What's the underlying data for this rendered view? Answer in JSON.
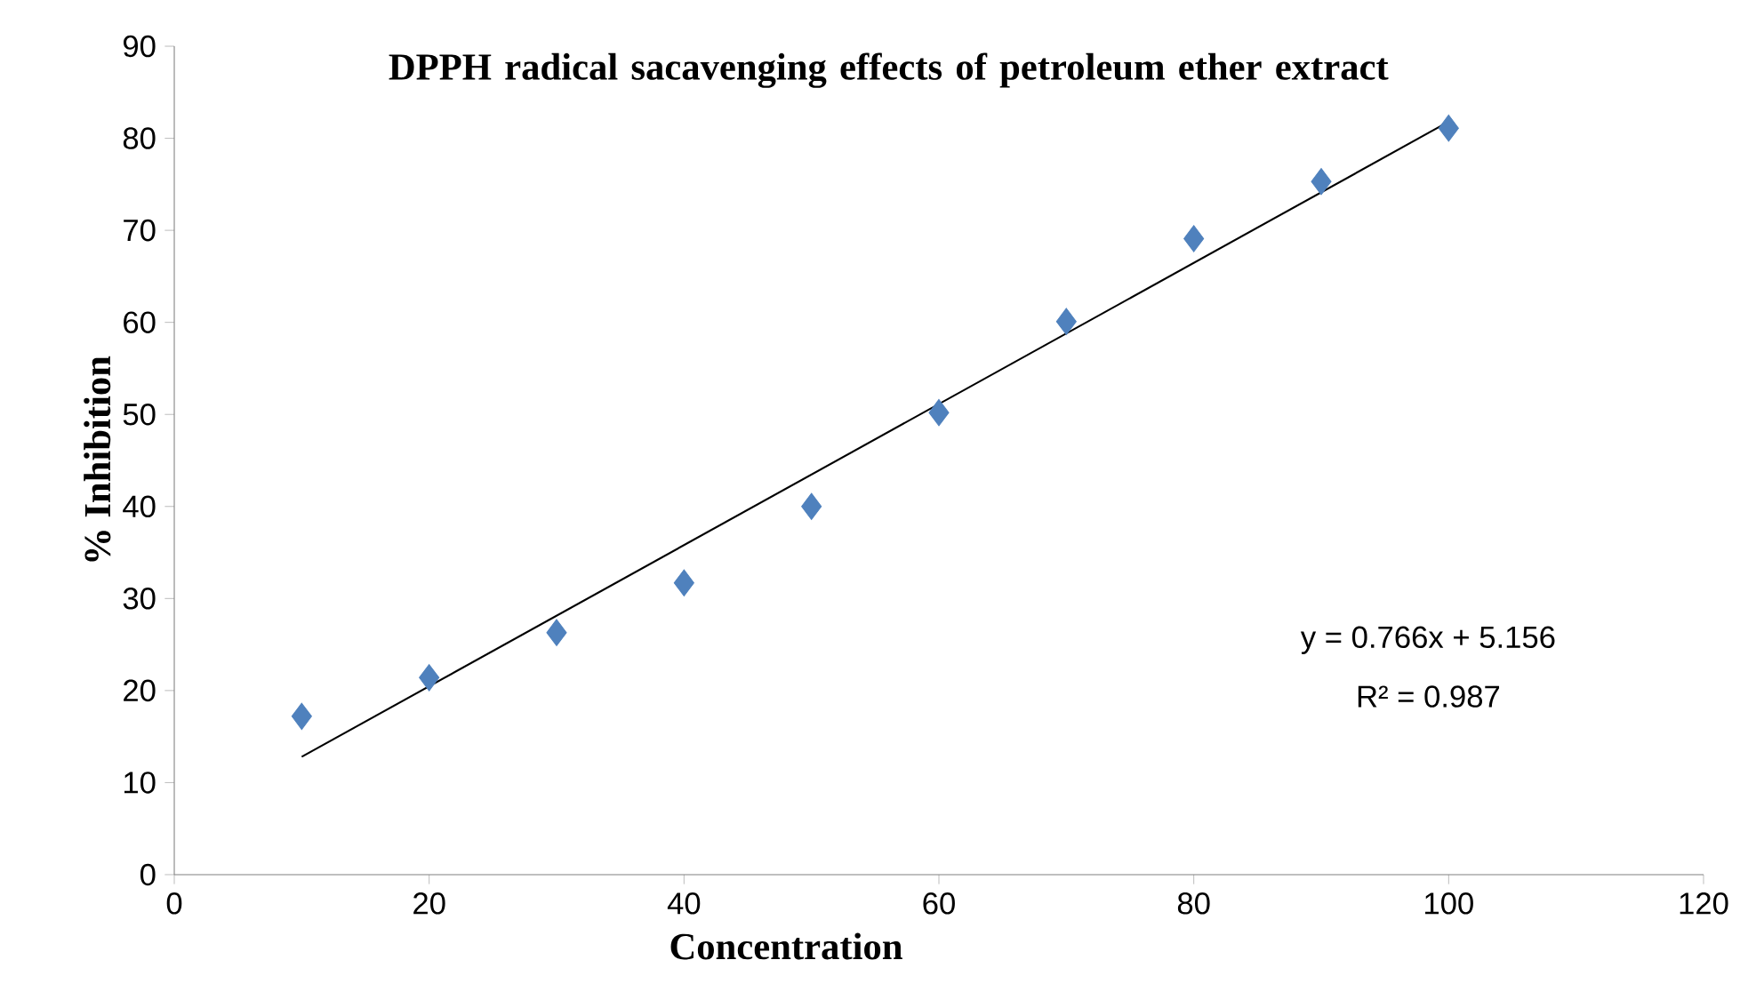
{
  "chart_data": {
    "type": "scatter",
    "title": "DPPH radical sacavenging effects of petroleum ether extract",
    "xlabel": "Concentration",
    "ylabel": "% Inhibition",
    "xlim": [
      0,
      120
    ],
    "xticks": [
      0,
      20,
      40,
      60,
      80,
      100,
      120
    ],
    "ylim": [
      0,
      90
    ],
    "yticks": [
      0,
      10,
      20,
      30,
      40,
      50,
      60,
      70,
      80,
      90
    ],
    "series": [
      {
        "marker": "diamond",
        "color": "#4f81bd",
        "x": [
          10,
          20,
          30,
          40,
          50,
          60,
          70,
          80,
          90,
          100
        ],
        "values": [
          17.2,
          21.4,
          26.3,
          31.7,
          40.0,
          50.2,
          60.1,
          69.1,
          75.3,
          81.1
        ]
      },
      {
        "type": "line",
        "marker": "none",
        "color": "#000000",
        "x": [
          10,
          100
        ],
        "values": [
          12.8,
          81.8
        ]
      }
    ],
    "annotations": [
      "y = 0.766x + 5.156",
      "R² = 0.987"
    ]
  }
}
